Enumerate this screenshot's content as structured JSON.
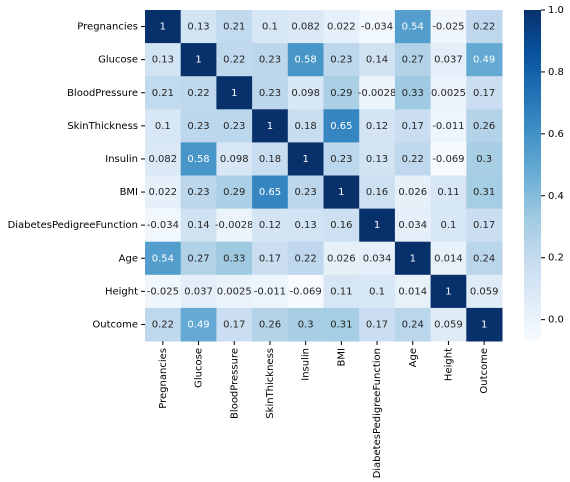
{
  "chart_data": {
    "type": "heatmap",
    "categories": [
      "Pregnancies",
      "Glucose",
      "BloodPressure",
      "SkinThickness",
      "Insulin",
      "BMI",
      "DiabetesPedigreeFunction",
      "Age",
      "Height",
      "Outcome"
    ],
    "values": [
      [
        1,
        0.13,
        0.21,
        0.1,
        0.082,
        0.022,
        -0.034,
        0.54,
        -0.025,
        0.22
      ],
      [
        0.13,
        1,
        0.22,
        0.23,
        0.58,
        0.23,
        0.14,
        0.27,
        0.037,
        0.49
      ],
      [
        0.21,
        0.22,
        1,
        0.23,
        0.098,
        0.29,
        -0.0028,
        0.33,
        0.0025,
        0.17
      ],
      [
        0.1,
        0.23,
        0.23,
        1,
        0.18,
        0.65,
        0.12,
        0.17,
        -0.011,
        0.26
      ],
      [
        0.082,
        0.58,
        0.098,
        0.18,
        1,
        0.23,
        0.13,
        0.22,
        -0.069,
        0.3
      ],
      [
        0.022,
        0.23,
        0.29,
        0.65,
        0.23,
        1,
        0.16,
        0.026,
        0.11,
        0.31
      ],
      [
        -0.034,
        0.14,
        -0.0028,
        0.12,
        0.13,
        0.16,
        1,
        0.034,
        0.1,
        0.17
      ],
      [
        0.54,
        0.27,
        0.33,
        0.17,
        0.22,
        0.026,
        0.034,
        1,
        0.014,
        0.24
      ],
      [
        -0.025,
        0.037,
        0.0025,
        -0.011,
        -0.069,
        0.11,
        0.1,
        0.014,
        1,
        0.059
      ],
      [
        0.22,
        0.49,
        0.17,
        0.26,
        0.3,
        0.31,
        0.17,
        0.24,
        0.059,
        1
      ]
    ],
    "colorscale": [
      "#f7fbff",
      "#deebf7",
      "#c6dbef",
      "#9ecae1",
      "#6baed6",
      "#4292c6",
      "#2171b5",
      "#08519c",
      "#08306b"
    ],
    "zlim": [
      -0.069,
      1
    ],
    "colorbar_ticks": [
      {
        "value": 1,
        "label": "1.0"
      },
      0.8,
      0.6,
      0.4,
      0.2,
      {
        "value": 0,
        "label": "0.0"
      }
    ]
  }
}
